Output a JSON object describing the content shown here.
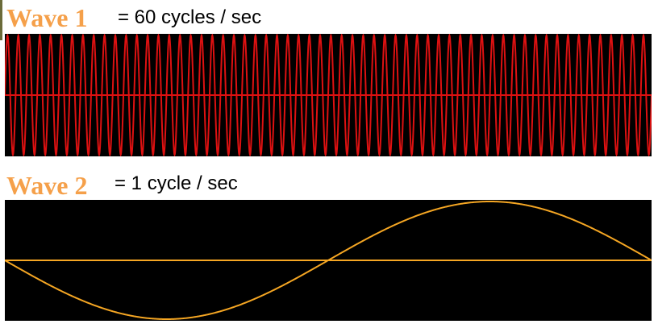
{
  "colors": {
    "wave1": "#dd1111",
    "wave2": "#f5a623",
    "title": "#f5a04a",
    "background": "#000000"
  },
  "waves": [
    {
      "title": "Wave 1",
      "description": "= 60 cycles / sec",
      "frequency_cycles_per_sec": 60,
      "cycles_shown": 60,
      "start_phase": "up"
    },
    {
      "title": "Wave 2",
      "description": "= 1 cycle / sec",
      "frequency_cycles_per_sec": 1,
      "cycles_shown": 1,
      "start_phase": "down"
    }
  ]
}
